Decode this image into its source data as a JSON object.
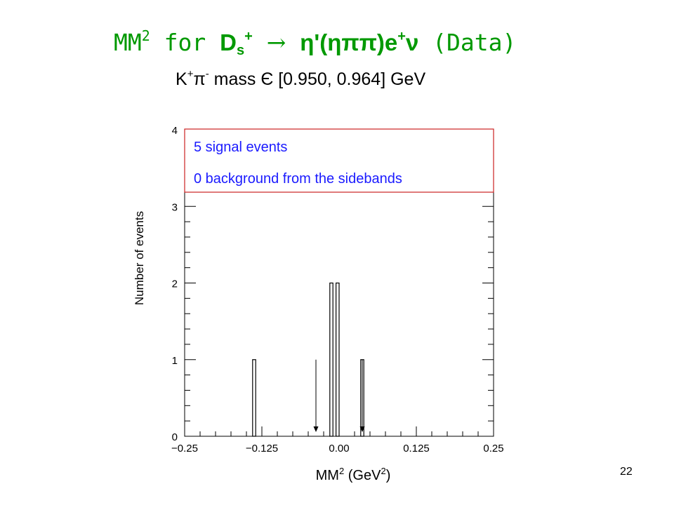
{
  "slide": {
    "title": {
      "mm": "MM",
      "mm_sup": "2",
      "for": "for",
      "ds": "D",
      "ds_sub": "s",
      "ds_sup": "+",
      "arrow": "→",
      "decay": "η'(ηππ)e",
      "e_sup": "+",
      "nu": "ν",
      "data": "(Data)"
    },
    "subtitle": {
      "k": "K",
      "k_sup": "+",
      "pi": "π",
      "pi_sup": "-",
      "rest": " mass Є [0.950, 0.964] GeV"
    },
    "slide_number": "22"
  },
  "chart_data": {
    "type": "bar",
    "title": "",
    "xlabel_main": "MM",
    "xlabel_sup1": "2",
    "xlabel_mid": " (GeV",
    "xlabel_sup2": "2",
    "xlabel_end": ")",
    "ylabel": "Number of events",
    "xlim": [
      -0.25,
      0.25
    ],
    "ylim": [
      0,
      4
    ],
    "x_ticks": [
      -0.25,
      -0.125,
      0.0,
      0.125,
      0.25
    ],
    "x_tick_labels": [
      "−0.25",
      "−0.125",
      "0.00",
      "0.125",
      "0.25"
    ],
    "y_ticks": [
      0,
      1,
      2,
      3,
      4
    ],
    "y_tick_labels": [
      "0",
      "1",
      "2",
      "3",
      "4"
    ],
    "bin_width": 0.005,
    "bins": [
      {
        "x": -0.1375,
        "count": 1
      },
      {
        "x": -0.0125,
        "count": 2
      },
      {
        "x": -0.0025,
        "count": 2
      },
      {
        "x": 0.0375,
        "count": 1
      }
    ],
    "signal_window_arrows": [
      -0.0375,
      0.0375
    ],
    "arrow_top": 1.0,
    "annotations": [
      "5 signal events",
      "0 background from the sidebands"
    ],
    "colors": {
      "title": "#009900",
      "annotation_text": "#1a1aff",
      "annotation_border": "#cc2222",
      "axis": "#000000"
    }
  }
}
